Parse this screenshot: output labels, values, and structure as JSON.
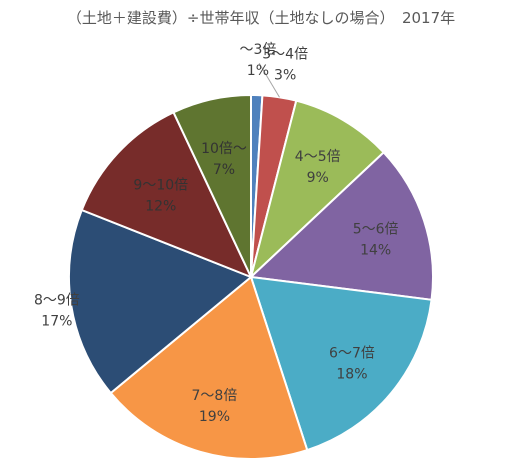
{
  "chart_data": {
    "type": "pie",
    "title": "（土地＋建設費）÷世帯年収（土地なしの場合）　2017年",
    "categories": [
      "～3倍",
      "3～4倍",
      "4～5倍",
      "5～6倍",
      "6～7倍",
      "7～8倍",
      "8～9倍",
      "9～10倍",
      "10倍～"
    ],
    "values": [
      1,
      3,
      9,
      14,
      18,
      19,
      17,
      12,
      7
    ],
    "value_labels": [
      "1%",
      "3%",
      "9%",
      "14%",
      "18%",
      "19%",
      "17%",
      "12%",
      "7%"
    ],
    "colors": [
      "#4f81bd",
      "#c0504d",
      "#9bbb59",
      "#8064a2",
      "#4bacc6",
      "#f79646",
      "#2c4d75",
      "#772c2a",
      "#5f7530"
    ],
    "legend": "none"
  }
}
